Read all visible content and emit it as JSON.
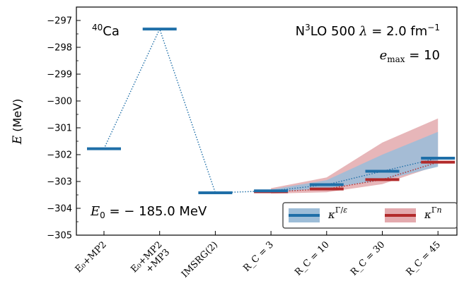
{
  "chart_data": {
    "type": "line",
    "categories": [
      "E₀+MP2",
      "E₀+MP2\n+MP3",
      "IMSRG(2)",
      "R_C = 3",
      "R_C = 10",
      "R_C = 30",
      "R_C = 45"
    ],
    "ylabel": "E (MeV)",
    "ylim": [
      -305,
      -296.5
    ],
    "yticks": [
      -297,
      -298,
      -299,
      -300,
      -301,
      -302,
      -303,
      -304,
      -305
    ],
    "grid": false,
    "legend_placement": "bottom-right",
    "annotations": {
      "top_left": "40Ca",
      "top_right_line1": "N3LO 500 λ = 2.0 fm−1",
      "top_right_line2": "e_max = 10",
      "bottom_left": "E0 = − 185.0 MeV"
    },
    "series": [
      {
        "name": "κΓ/ε",
        "color": "#1f6fa8",
        "band_color": "#9dbdd8",
        "values": [
          -301.78,
          -297.32,
          -303.42,
          -303.35,
          -303.12,
          -302.62,
          -302.13
        ],
        "band_low": [
          null,
          null,
          null,
          -303.4,
          -303.25,
          -302.95,
          -302.45
        ],
        "band_high": [
          null,
          null,
          null,
          -303.3,
          -302.95,
          -302.0,
          -301.15
        ]
      },
      {
        "name": "κΓn",
        "color": "#b22a2a",
        "band_color": "#e3a9ad",
        "values": [
          null,
          null,
          null,
          -303.38,
          -303.28,
          -302.93,
          -302.28
        ],
        "band_low": [
          null,
          null,
          null,
          -303.45,
          -303.4,
          -303.1,
          -302.4
        ],
        "band_high": [
          null,
          null,
          null,
          -303.25,
          -302.85,
          -301.55,
          -300.65
        ]
      }
    ]
  }
}
